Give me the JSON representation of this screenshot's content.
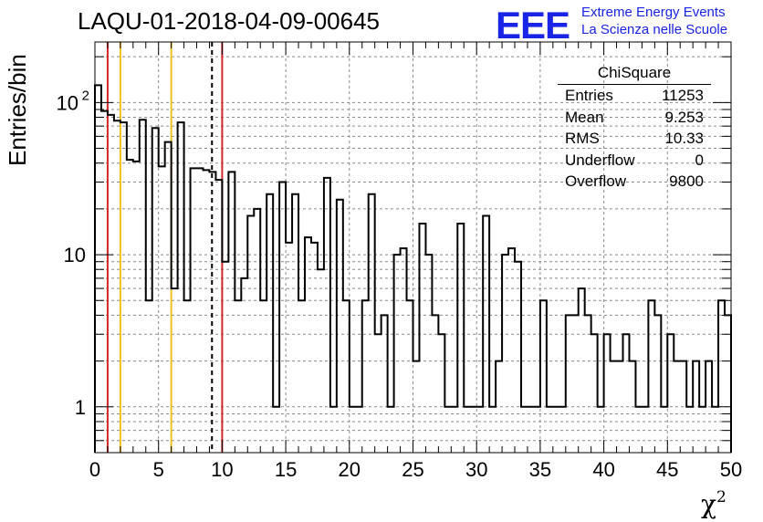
{
  "title": "LAQU-01-2018-04-09-00645",
  "logo": {
    "mark": "EEE",
    "line1": "Extreme Energy Events",
    "line2": "La Scienza nelle Scuole",
    "color": "#1a24e6"
  },
  "stats": {
    "header": "ChiSquare",
    "rows": [
      {
        "label": "Entries",
        "value": "11253"
      },
      {
        "label": "Mean",
        "value": "9.253"
      },
      {
        "label": "RMS",
        "value": "10.33"
      },
      {
        "label": "Underflow",
        "value": "0"
      },
      {
        "label": "Overflow",
        "value": "9800"
      }
    ]
  },
  "chart_data": {
    "type": "histogram",
    "xlabel": "χ",
    "xlabel_sup": "2",
    "ylabel": "Entries/bin",
    "xlim": [
      0,
      50
    ],
    "ylim": [
      0.5,
      250
    ],
    "yscale": "log",
    "grid": true,
    "bin_width": 0.5,
    "x_ticks": [
      "0",
      "5",
      "10",
      "15",
      "20",
      "25",
      "30",
      "35",
      "40",
      "45",
      "50"
    ],
    "y_ticks": [
      {
        "value": 1,
        "label": "1"
      },
      {
        "value": 10,
        "label": "10"
      },
      {
        "value": 100,
        "label": "10",
        "sup": "2"
      }
    ],
    "values": [
      130,
      88,
      83,
      76,
      74,
      42,
      41,
      77,
      5,
      68,
      38,
      55,
      6,
      74,
      5,
      37,
      37,
      36,
      35,
      31,
      9,
      35,
      5,
      7,
      18,
      20,
      5,
      25,
      1,
      30,
      12,
      25,
      5,
      13,
      12,
      8,
      32,
      1,
      23,
      5,
      1,
      1,
      5,
      25,
      3,
      4,
      1,
      10,
      11,
      5,
      2,
      16,
      10,
      4,
      3,
      1,
      1,
      16,
      1,
      1,
      1,
      18,
      1,
      2,
      10,
      11,
      9,
      1,
      1,
      1,
      5,
      1,
      1,
      1,
      4,
      4,
      6,
      4,
      3,
      1,
      3,
      2,
      2,
      3,
      2,
      1,
      1,
      5,
      4,
      1,
      3,
      2,
      2,
      1,
      2,
      1,
      2,
      1,
      5,
      4
    ],
    "vlines": [
      {
        "x": 1,
        "color": "#d62728",
        "style": "solid"
      },
      {
        "x": 2,
        "color": "#f0c020",
        "style": "solid"
      },
      {
        "x": 6,
        "color": "#f0c020",
        "style": "solid"
      },
      {
        "x": 9.2,
        "color": "#000000",
        "style": "dashed"
      },
      {
        "x": 10,
        "color": "#d62728",
        "style": "solid"
      }
    ]
  }
}
